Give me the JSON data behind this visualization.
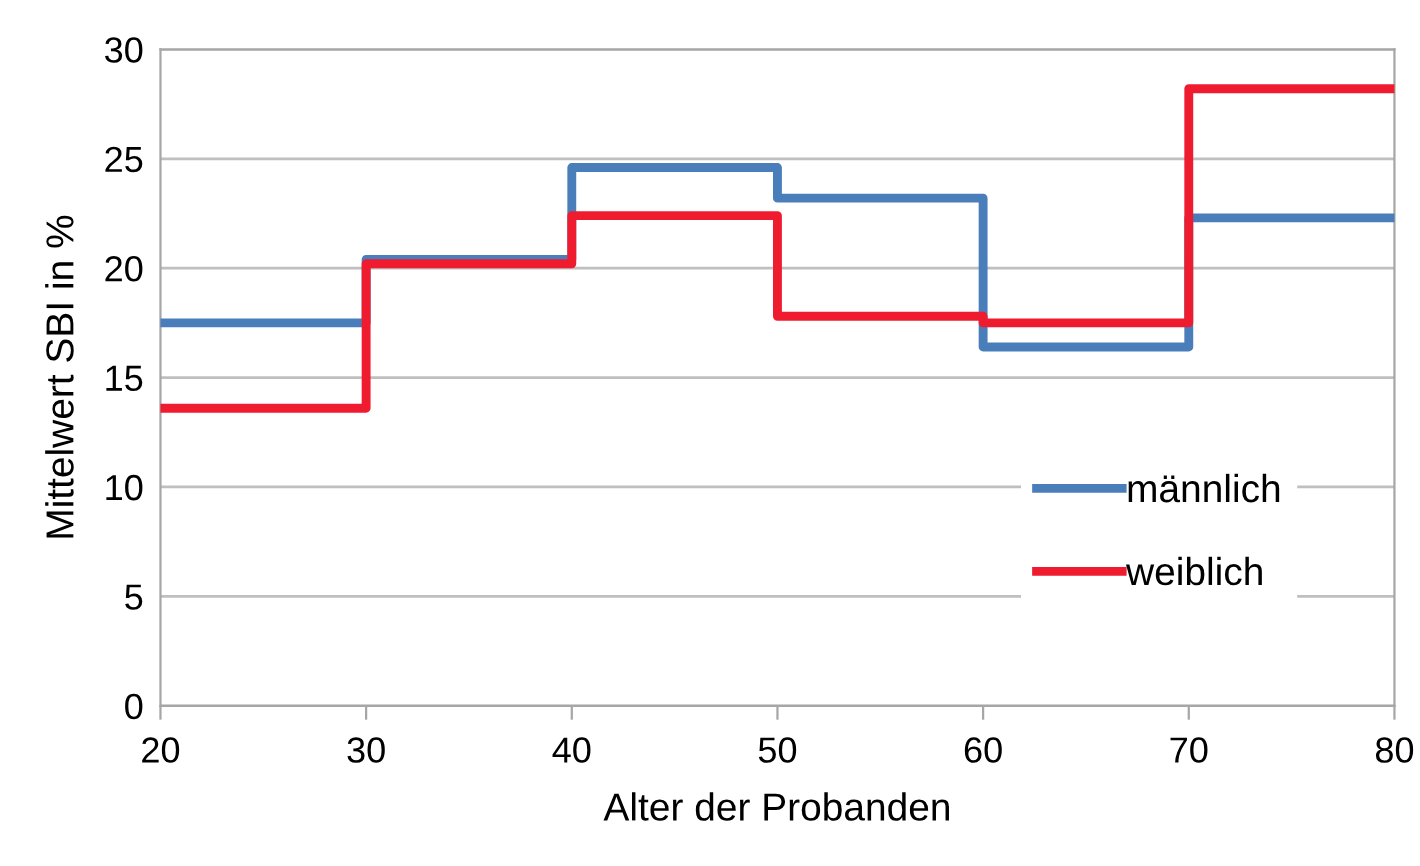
{
  "chart_data": {
    "type": "step",
    "xlabel": "Alter der Probanden",
    "ylabel": "Mittelwert SBI in %",
    "x": [
      20,
      30,
      40,
      50,
      60,
      70,
      80
    ],
    "series": [
      {
        "name": "männlich",
        "color": "#4a7ebb",
        "values": [
          17.5,
          20.4,
          24.6,
          23.2,
          16.4,
          22.3,
          22.3
        ]
      },
      {
        "name": "weiblich",
        "color": "#ee1c2e",
        "values": [
          13.6,
          20.2,
          22.4,
          17.8,
          17.5,
          28.2,
          28.2
        ]
      }
    ],
    "xlim": [
      20,
      80
    ],
    "xticks": [
      20,
      30,
      40,
      50,
      60,
      70,
      80
    ],
    "ylim": [
      0,
      30
    ],
    "yticks": [
      0,
      5,
      10,
      15,
      20,
      25,
      30
    ],
    "grid": "y",
    "legend": "bottom right",
    "line_style": "solid"
  }
}
